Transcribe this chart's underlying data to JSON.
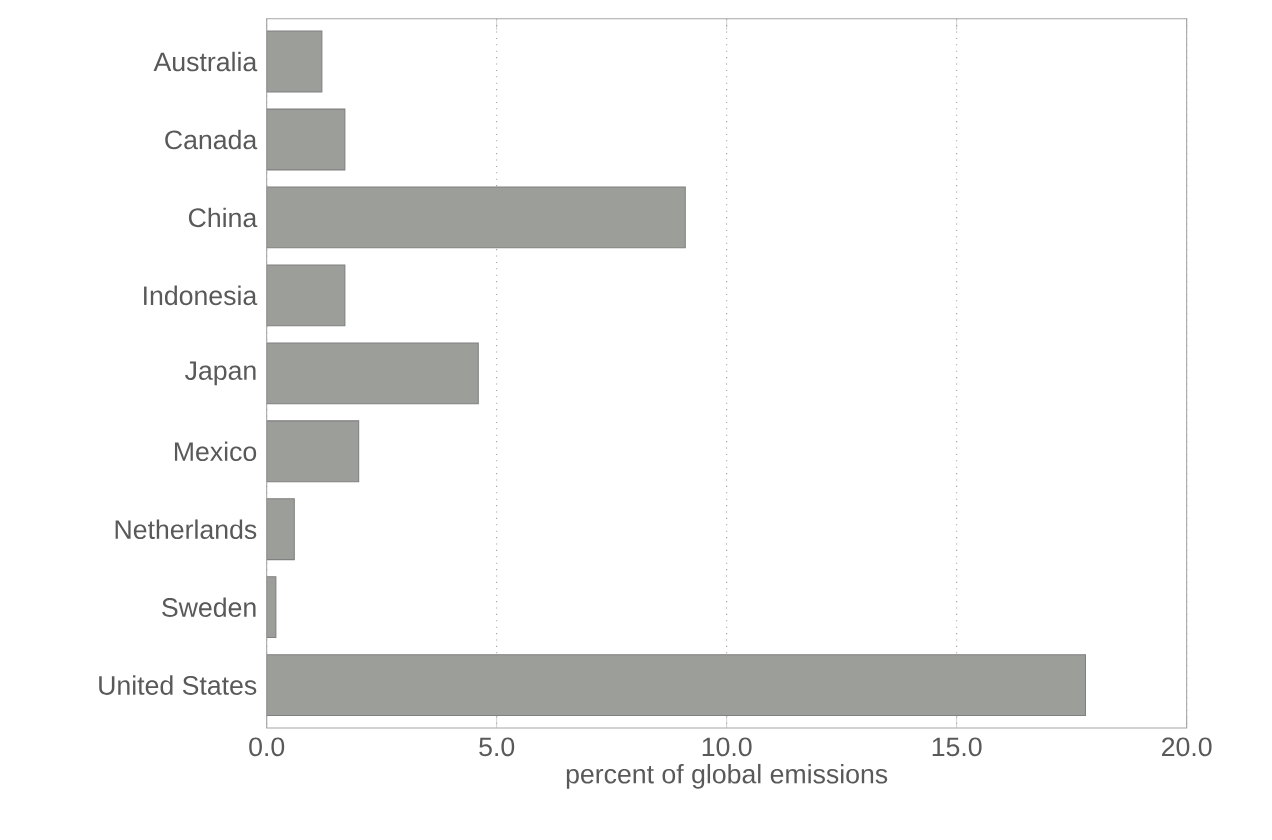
{
  "chart_data": {
    "type": "bar",
    "orientation": "horizontal",
    "xlabel": "percent of global emissions",
    "categories": [
      "Australia",
      "Canada",
      "China",
      "Indonesia",
      "Japan",
      "Mexico",
      "Netherlands",
      "Sweden",
      "United States"
    ],
    "values": [
      1.2,
      1.7,
      9.1,
      1.7,
      4.6,
      2.0,
      0.6,
      0.2,
      17.8
    ],
    "color": "#9c9f99",
    "xlim": [
      0,
      20
    ],
    "xticks": [
      {
        "value": 0,
        "label": "0.0"
      },
      {
        "value": 5,
        "label": "5.0"
      },
      {
        "value": 10,
        "label": "10.0"
      },
      {
        "value": 15,
        "label": "15.0"
      },
      {
        "value": 20,
        "label": "20.0"
      }
    ],
    "grid": "x"
  }
}
